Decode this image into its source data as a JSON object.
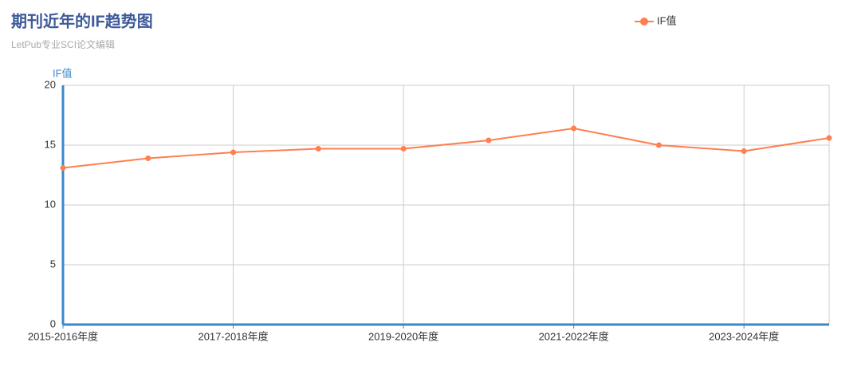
{
  "chart_data": {
    "type": "line",
    "title": "期刊近年的IF趋势图",
    "subtitle": "LetPub专业SCI论文编辑",
    "y_label": "IF值",
    "categories": [
      "2015-2016年度",
      null,
      "2017-2018年度",
      null,
      "2019-2020年度",
      null,
      "2021-2022年度",
      null,
      "2023-2024年度",
      null
    ],
    "series": [
      {
        "name": "IF值",
        "color": "#ff7f50",
        "values": [
          13.1,
          13.9,
          14.4,
          14.7,
          14.7,
          15.4,
          16.4,
          15.0,
          14.5,
          15.6
        ]
      }
    ],
    "ylim": [
      0,
      20
    ],
    "yticks": [
      0,
      5,
      10,
      15,
      20
    ],
    "grid": true,
    "legend": "top-right"
  }
}
